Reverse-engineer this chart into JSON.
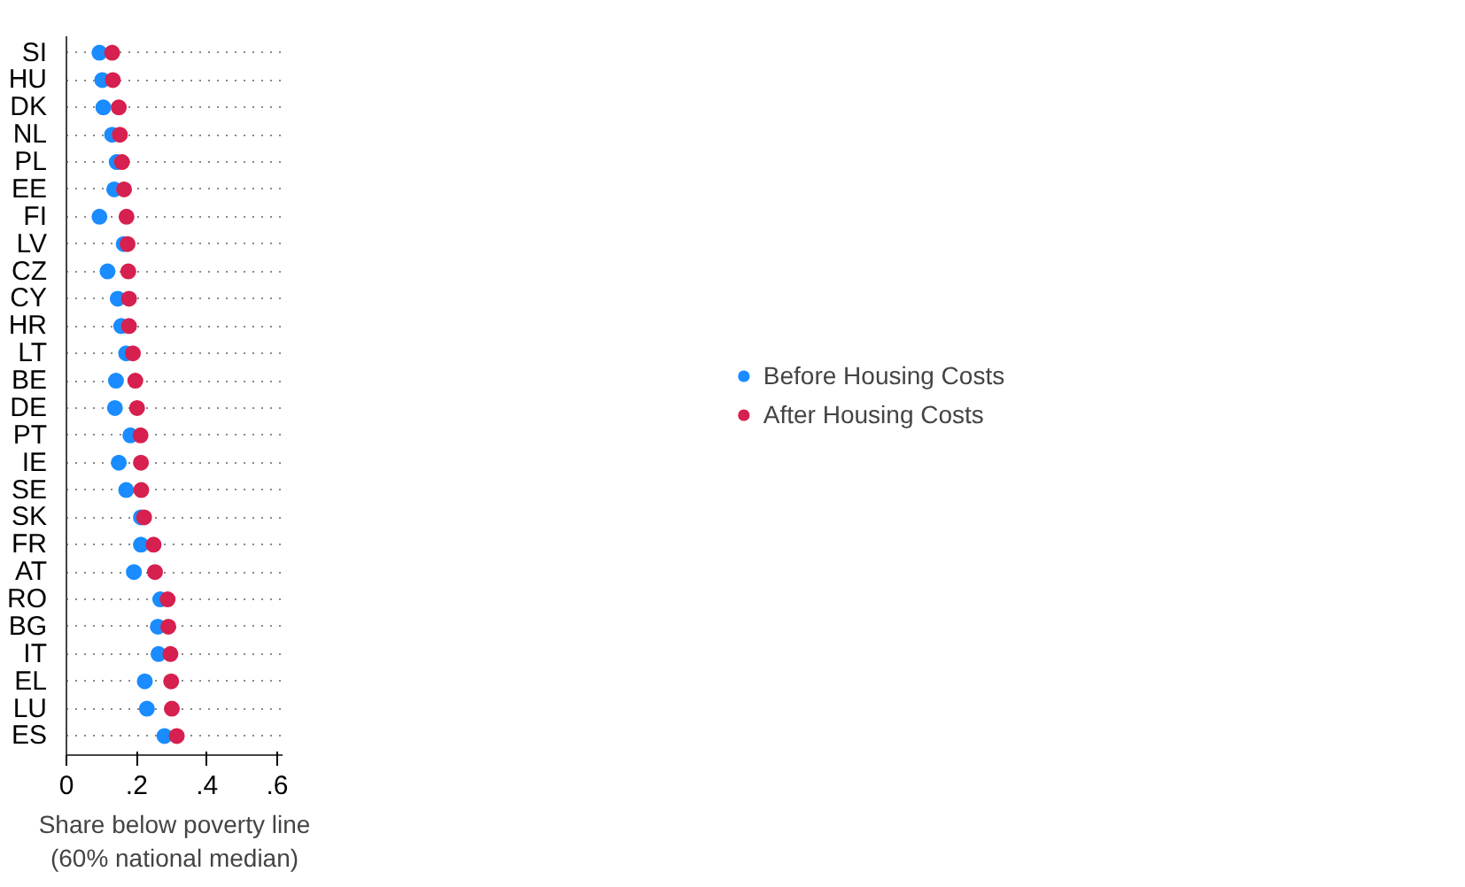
{
  "chart_data": {
    "type": "scatter",
    "xlabel": "Share below poverty line\n(60% national median)",
    "categories": [
      "SI",
      "HU",
      "DK",
      "NL",
      "PL",
      "EE",
      "FI",
      "LV",
      "CZ",
      "CY",
      "HR",
      "LT",
      "BE",
      "DE",
      "PT",
      "IE",
      "SE",
      "SK",
      "FR",
      "AT",
      "RO",
      "BG",
      "IT",
      "EL",
      "LU",
      "ES"
    ],
    "orientation": "horizontal",
    "xlim": [
      0,
      0.615
    ],
    "xticks": [
      {
        "value": 0,
        "label": "0"
      },
      {
        "value": 0.2,
        "label": ".2"
      },
      {
        "value": 0.4,
        "label": ".4"
      },
      {
        "value": 0.6,
        "label": ".6"
      }
    ],
    "grid": "y",
    "legend": "right",
    "marker": "circle",
    "series": [
      {
        "name": "Before Housing Costs",
        "color": "#1a8cff",
        "values": [
          0.094,
          0.102,
          0.105,
          0.13,
          0.143,
          0.136,
          0.094,
          0.163,
          0.117,
          0.146,
          0.156,
          0.17,
          0.141,
          0.138,
          0.182,
          0.149,
          0.17,
          0.212,
          0.212,
          0.192,
          0.267,
          0.26,
          0.262,
          0.223,
          0.229,
          0.279
        ]
      },
      {
        "name": "After Housing Costs",
        "color": "#d6204f",
        "values": [
          0.13,
          0.132,
          0.149,
          0.152,
          0.158,
          0.164,
          0.171,
          0.174,
          0.176,
          0.178,
          0.178,
          0.189,
          0.196,
          0.201,
          0.211,
          0.212,
          0.213,
          0.221,
          0.248,
          0.252,
          0.288,
          0.29,
          0.296,
          0.298,
          0.3,
          0.314
        ]
      }
    ]
  }
}
